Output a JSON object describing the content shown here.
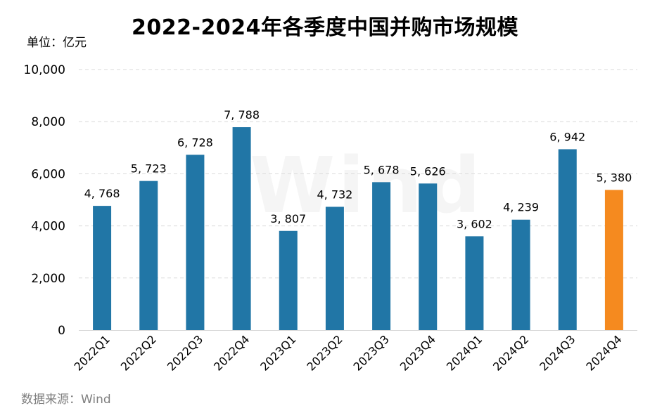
{
  "title": "2022-2024年各季度中国并购市场规模",
  "unit": "单位：亿元",
  "source": "数据来源：Wind",
  "watermark": "Wind",
  "colors": {
    "bar": "#2176a6",
    "highlight": "#f58a1f",
    "grid": "#d9d9d9"
  },
  "chart_data": {
    "type": "bar",
    "title": "2022-2024年各季度中国并购市场规模",
    "ylabel": "单位：亿元",
    "xlabel": "",
    "categories": [
      "2022Q1",
      "2022Q2",
      "2022Q3",
      "2022Q4",
      "2023Q1",
      "2023Q2",
      "2023Q3",
      "2023Q4",
      "2024Q1",
      "2024Q2",
      "2024Q3",
      "2024Q4"
    ],
    "values": [
      4768,
      5723,
      6728,
      7788,
      3807,
      4732,
      5678,
      5626,
      3602,
      4239,
      6942,
      5380
    ],
    "data_labels": [
      "4, 768",
      "5, 723",
      "6, 728",
      "7, 788",
      "3, 807",
      "4, 732",
      "5, 678",
      "5, 626",
      "3, 602",
      "4, 239",
      "6, 942",
      "5, 380"
    ],
    "highlight_index": 11,
    "ylim": [
      0,
      10000
    ],
    "yticks": [
      0,
      2000,
      4000,
      6000,
      8000,
      10000
    ],
    "ytick_labels": [
      "0",
      "2,000",
      "4,000",
      "6,000",
      "8,000",
      "10,000"
    ],
    "grid": "horizontal dashed"
  }
}
